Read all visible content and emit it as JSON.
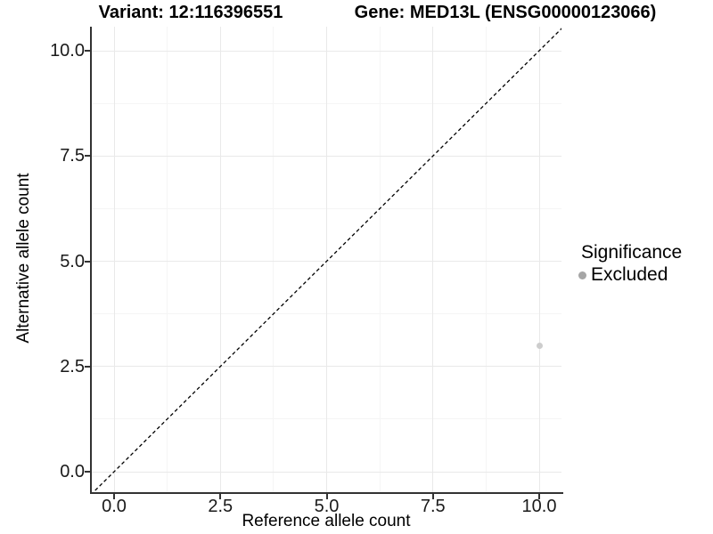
{
  "chart_data": {
    "type": "scatter",
    "titles": {
      "left": "Variant: 12:116396551",
      "right": "Gene: MED13L (ENSG00000123066)"
    },
    "xlabel": "Reference allele count",
    "ylabel": "Alternative allele count",
    "x_axis": {
      "tick_values": [
        0,
        2.5,
        5,
        7.5,
        10
      ],
      "tick_labels": [
        "0.0",
        "2.5",
        "5.0",
        "7.5",
        "10.0"
      ],
      "minor_tick_values": [
        1.25,
        3.75,
        6.25,
        8.75
      ],
      "range": [
        -0.55,
        10.55
      ]
    },
    "y_axis": {
      "tick_values": [
        0,
        2.5,
        5,
        7.5,
        10
      ],
      "tick_labels": [
        "0.0",
        "2.5",
        "5.0",
        "7.5",
        "10.0"
      ],
      "minor_tick_values": [
        1.25,
        3.75,
        6.25,
        8.75
      ],
      "range": [
        -0.55,
        10.55
      ]
    },
    "grid": "major and minor gridlines, light gray, on white panel",
    "reference_line": {
      "kind": "identity y=x",
      "style": "dashed",
      "color": "#000000"
    },
    "series": [
      {
        "name": "Excluded",
        "marker_color": "#cdcdcd",
        "marker_diameter_px": 7,
        "points": [
          {
            "x": 10,
            "y": 3
          }
        ]
      }
    ],
    "legend": {
      "title": "Significance",
      "position": "right",
      "items": [
        {
          "label": "Excluded",
          "marker_color": "#a6a6a6"
        }
      ]
    }
  },
  "colors": {
    "axis_line": "#333333",
    "grid_major": "#e9e9e9",
    "grid_minor": "#f5f5f5",
    "tick_text": "#1a1a1a",
    "title_text": "#000000"
  }
}
